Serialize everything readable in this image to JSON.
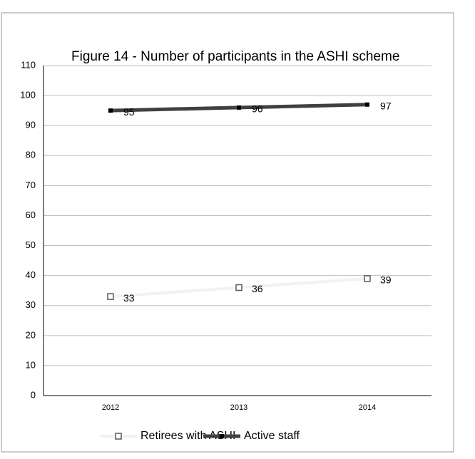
{
  "chart_data": {
    "type": "line",
    "title": "Figure 14 - Number of participants in the ASHI scheme",
    "categories": [
      "2012",
      "2013",
      "2014"
    ],
    "series": [
      {
        "name": "Retirees with ASHI",
        "color": "#f2f2f2",
        "marker_color": "#595959",
        "values": [
          33,
          36,
          39
        ]
      },
      {
        "name": "Active staff",
        "color": "#404040",
        "marker_color": "#000000",
        "values": [
          95,
          96,
          97
        ]
      }
    ],
    "ylim": [
      0,
      110
    ],
    "yticks": [
      0,
      10,
      20,
      30,
      40,
      50,
      60,
      70,
      80,
      90,
      100,
      110
    ],
    "grid": true
  }
}
